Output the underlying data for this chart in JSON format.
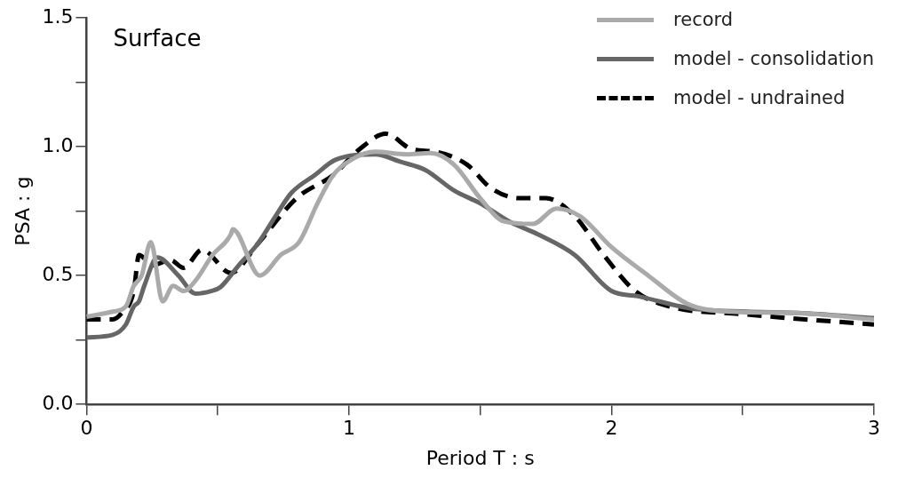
{
  "chart_data": {
    "type": "line",
    "xlabel": "Period T : s",
    "ylabel": "PSA : g",
    "annotations": [
      "Surface"
    ],
    "xlim": [
      0,
      3
    ],
    "ylim": [
      0,
      1.5
    ],
    "xticks": [
      0,
      {
        "value": 0.5,
        "label": null
      },
      1,
      {
        "value": 1.5,
        "label": null
      },
      2,
      {
        "value": 2.5,
        "label": null
      },
      3
    ],
    "yticks": [
      {
        "value": 0,
        "label": "0.0"
      },
      {
        "value": 0.25,
        "label": null
      },
      {
        "value": 0.5,
        "label": "0.5"
      },
      {
        "value": 0.75,
        "label": null
      },
      {
        "value": 1,
        "label": "1.0"
      },
      {
        "value": 1.25,
        "label": null
      },
      {
        "value": 1.5,
        "label": "1.5"
      }
    ],
    "grid": false,
    "legend": "top right",
    "marker": "none",
    "series": [
      {
        "name": "record",
        "color": "#aaaaaa",
        "line_style": "solid",
        "x": [
          0,
          0.1,
          0.15,
          0.18,
          0.21,
          0.245,
          0.29,
          0.33,
          0.37,
          0.415,
          0.48,
          0.55,
          0.557,
          0.66,
          0.74,
          0.81,
          0.88,
          0.94,
          1.01,
          1.1,
          1.22,
          1.31,
          1.4,
          1.5,
          1.59,
          1.7,
          1.79,
          1.88,
          2.0,
          2.14,
          2.29,
          2.45,
          2.7,
          3.0
        ],
        "values": [
          0.34,
          0.36,
          0.38,
          0.46,
          0.5,
          0.63,
          0.4,
          0.46,
          0.44,
          0.48,
          0.58,
          0.66,
          0.68,
          0.5,
          0.58,
          0.63,
          0.78,
          0.89,
          0.95,
          0.98,
          0.97,
          0.975,
          0.93,
          0.8,
          0.71,
          0.7,
          0.76,
          0.73,
          0.61,
          0.5,
          0.39,
          0.36,
          0.355,
          0.33
        ]
      },
      {
        "name": "model - consolidation",
        "color": "#666666",
        "line_style": "solid",
        "x": [
          0,
          0.1,
          0.15,
          0.18,
          0.2,
          0.22,
          0.27,
          0.35,
          0.415,
          0.475,
          0.51,
          0.58,
          0.65,
          0.72,
          0.78,
          0.87,
          0.95,
          1.1,
          1.2,
          1.29,
          1.4,
          1.5,
          1.61,
          1.72,
          1.86,
          2.0,
          2.1,
          2.32,
          2.71,
          3.0
        ],
        "values": [
          0.26,
          0.27,
          0.31,
          0.38,
          0.4,
          0.46,
          0.57,
          0.5,
          0.43,
          0.44,
          0.455,
          0.54,
          0.62,
          0.73,
          0.82,
          0.89,
          0.95,
          0.97,
          0.94,
          0.91,
          0.83,
          0.78,
          0.71,
          0.66,
          0.58,
          0.44,
          0.42,
          0.37,
          0.355,
          0.335
        ]
      },
      {
        "name": "model - undrained",
        "color": "#000000",
        "line_style": "dashed",
        "x": [
          0,
          0.1,
          0.13,
          0.18,
          0.2,
          0.25,
          0.32,
          0.37,
          0.44,
          0.55,
          0.65,
          0.8,
          0.94,
          1.04,
          1.14,
          1.24,
          1.33,
          1.45,
          1.54,
          1.65,
          1.75,
          1.86,
          1.97,
          2.09,
          2.22,
          2.5,
          3.0
        ],
        "values": [
          0.33,
          0.33,
          0.35,
          0.44,
          0.58,
          0.54,
          0.56,
          0.53,
          0.6,
          0.51,
          0.62,
          0.8,
          0.89,
          0.99,
          1.05,
          0.99,
          0.98,
          0.93,
          0.84,
          0.8,
          0.8,
          0.73,
          0.58,
          0.44,
          0.38,
          0.35,
          0.31
        ]
      }
    ]
  }
}
